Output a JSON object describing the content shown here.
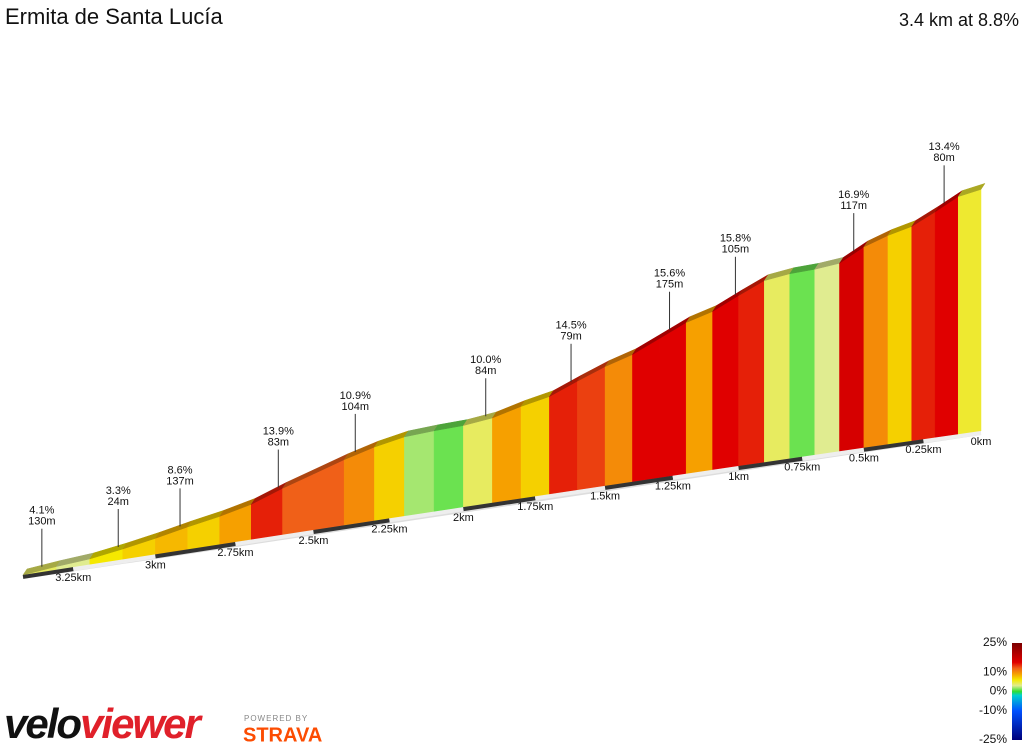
{
  "chart_data": {
    "type": "climb-profile",
    "title": "Ermita de Santa Lucía",
    "summary": "3.4 km at 8.8%",
    "xlim": [
      3.4,
      0
    ],
    "xticks": [
      {
        "value": 3.25,
        "label": "3.25km"
      },
      {
        "value": 3,
        "label": "3km"
      },
      {
        "value": 2.75,
        "label": "2.75km"
      },
      {
        "value": 2.5,
        "label": "2.5km"
      },
      {
        "value": 2.25,
        "label": "2.25km"
      },
      {
        "value": 2,
        "label": "2km"
      },
      {
        "value": 1.75,
        "label": "1.75km"
      },
      {
        "value": 1.5,
        "label": "1.5km"
      },
      {
        "value": 1.25,
        "label": "1.25km"
      },
      {
        "value": 1,
        "label": "1km"
      },
      {
        "value": 0.75,
        "label": "0.75km"
      },
      {
        "value": 0.5,
        "label": "0.5km"
      },
      {
        "value": 0.25,
        "label": "0.25km"
      },
      {
        "value": 0,
        "label": "0km"
      }
    ],
    "grades": [
      4,
      3,
      6,
      7,
      8,
      7,
      9,
      14,
      12,
      12,
      10,
      7,
      2,
      1,
      4,
      9,
      7,
      14,
      13,
      10,
      15,
      15,
      9,
      15,
      14,
      4,
      1,
      3,
      16,
      10,
      7,
      14,
      15,
      5
    ],
    "annotations": [
      {
        "at_km": 3.35,
        "grade": {
          "value": 4.1,
          "label": "4.1%"
        },
        "length": {
          "value": 130,
          "label": "130m"
        }
      },
      {
        "at_km": 3.12,
        "grade": {
          "value": 3.3,
          "label": "3.3%"
        },
        "length": {
          "value": 24,
          "label": "24m"
        }
      },
      {
        "at_km": 2.93,
        "grade": {
          "value": 8.6,
          "label": "8.6%"
        },
        "length": {
          "value": 137,
          "label": "137m"
        }
      },
      {
        "at_km": 2.62,
        "grade": {
          "value": 13.9,
          "label": "13.9%"
        },
        "length": {
          "value": 83,
          "label": "83m"
        }
      },
      {
        "at_km": 2.37,
        "grade": {
          "value": 10.9,
          "label": "10.9%"
        },
        "length": {
          "value": 104,
          "label": "104m"
        }
      },
      {
        "at_km": 1.93,
        "grade": {
          "value": 10.0,
          "label": "10.0%"
        },
        "length": {
          "value": 84,
          "label": "84m"
        }
      },
      {
        "at_km": 1.63,
        "grade": {
          "value": 14.5,
          "label": "14.5%"
        },
        "length": {
          "value": 79,
          "label": "79m"
        }
      },
      {
        "at_km": 1.27,
        "grade": {
          "value": 15.6,
          "label": "15.6%"
        },
        "length": {
          "value": 175,
          "label": "175m"
        }
      },
      {
        "at_km": 1.02,
        "grade": {
          "value": 15.8,
          "label": "15.8%"
        },
        "length": {
          "value": 105,
          "label": "105m"
        }
      },
      {
        "at_km": 0.55,
        "grade": {
          "value": 16.9,
          "label": "16.9%"
        },
        "length": {
          "value": 117,
          "label": "117m"
        }
      },
      {
        "at_km": 0.17,
        "grade": {
          "value": 13.4,
          "label": "13.4%"
        },
        "length": {
          "value": 80,
          "label": "80m"
        }
      }
    ],
    "color_stops": [
      {
        "value": -25,
        "color": "#00007a"
      },
      {
        "value": -10,
        "color": "#0050ff"
      },
      {
        "value": -2,
        "color": "#00d0d0"
      },
      {
        "value": 0,
        "color": "#30dd30"
      },
      {
        "value": 3,
        "color": "#e0ec90"
      },
      {
        "value": 6,
        "color": "#f5e800"
      },
      {
        "value": 9,
        "color": "#f6a000"
      },
      {
        "value": 12,
        "color": "#f06018"
      },
      {
        "value": 15,
        "color": "#e00000"
      },
      {
        "value": 25,
        "color": "#7a0000"
      }
    ],
    "legend_ticks": [
      {
        "value": 25,
        "label": "25%"
      },
      {
        "value": 10,
        "label": "10%"
      },
      {
        "value": 0,
        "label": "0%"
      },
      {
        "value": -10,
        "label": "-10%"
      },
      {
        "value": -25,
        "label": "-25%"
      }
    ]
  },
  "branding": {
    "logo_dark": "velo",
    "logo_red": "viewer",
    "powered_by": "POWERED BY",
    "strava": "STRAVA"
  }
}
